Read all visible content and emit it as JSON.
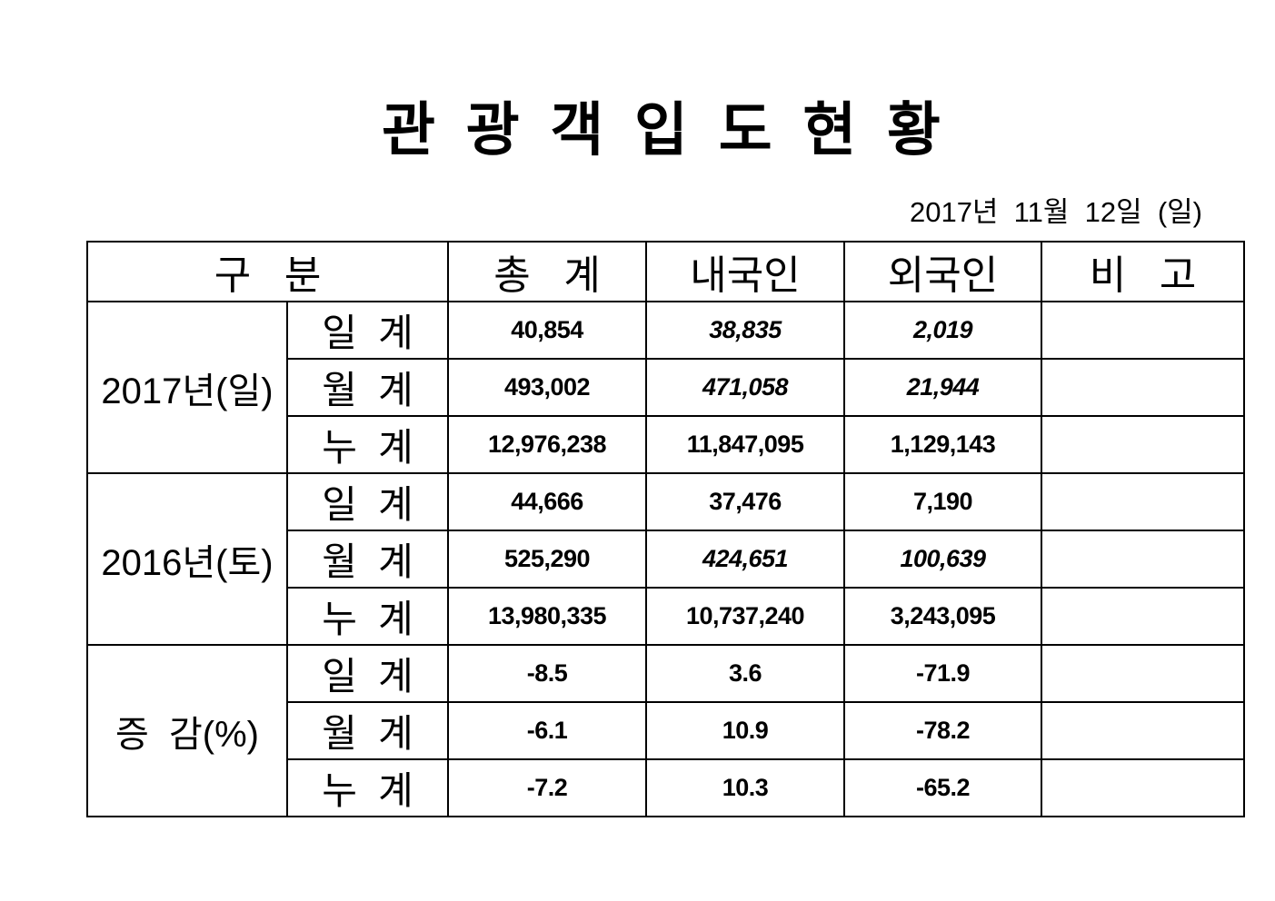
{
  "title": "관 광 객 입 도 현 황",
  "date": "2017년  11월  12일  (일)",
  "table": {
    "headers": [
      "구   분",
      "총   계",
      "내국인",
      "외국인",
      "비   고"
    ],
    "groups": [
      {
        "label": "2017년(일)",
        "rows": [
          {
            "label": "일  계",
            "cells": [
              {
                "v": "40,854",
                "italic": false
              },
              {
                "v": "38,835",
                "italic": true
              },
              {
                "v": "2,019",
                "italic": true
              }
            ],
            "note": ""
          },
          {
            "label": "월  계",
            "cells": [
              {
                "v": "493,002",
                "italic": false
              },
              {
                "v": "471,058",
                "italic": true
              },
              {
                "v": "21,944",
                "italic": true
              }
            ],
            "note": ""
          },
          {
            "label": "누  계",
            "cells": [
              {
                "v": "12,976,238",
                "italic": false
              },
              {
                "v": "11,847,095",
                "italic": false
              },
              {
                "v": "1,129,143",
                "italic": false
              }
            ],
            "note": ""
          }
        ]
      },
      {
        "label": "2016년(토)",
        "rows": [
          {
            "label": "일  계",
            "cells": [
              {
                "v": "44,666",
                "italic": false
              },
              {
                "v": "37,476",
                "italic": false
              },
              {
                "v": "7,190",
                "italic": false
              }
            ],
            "note": ""
          },
          {
            "label": "월  계",
            "cells": [
              {
                "v": "525,290",
                "italic": false
              },
              {
                "v": "424,651",
                "italic": true
              },
              {
                "v": "100,639",
                "italic": true
              }
            ],
            "note": ""
          },
          {
            "label": "누  계",
            "cells": [
              {
                "v": "13,980,335",
                "italic": false
              },
              {
                "v": "10,737,240",
                "italic": false
              },
              {
                "v": "3,243,095",
                "italic": false
              }
            ],
            "note": ""
          }
        ]
      },
      {
        "label": "증  감(%)",
        "rows": [
          {
            "label": "일  계",
            "cells": [
              {
                "v": "-8.5",
                "italic": false
              },
              {
                "v": "3.6",
                "italic": false
              },
              {
                "v": "-71.9",
                "italic": false
              }
            ],
            "note": ""
          },
          {
            "label": "월  계",
            "cells": [
              {
                "v": "-6.1",
                "italic": false
              },
              {
                "v": "10.9",
                "italic": false
              },
              {
                "v": "-78.2",
                "italic": false
              }
            ],
            "note": ""
          },
          {
            "label": "누  계",
            "cells": [
              {
                "v": "-7.2",
                "italic": false
              },
              {
                "v": "10.3",
                "italic": false
              },
              {
                "v": "-65.2",
                "italic": false
              }
            ],
            "note": ""
          }
        ]
      }
    ]
  },
  "colors": {
    "text": "#000000",
    "border": "#000000",
    "background": "#ffffff"
  }
}
